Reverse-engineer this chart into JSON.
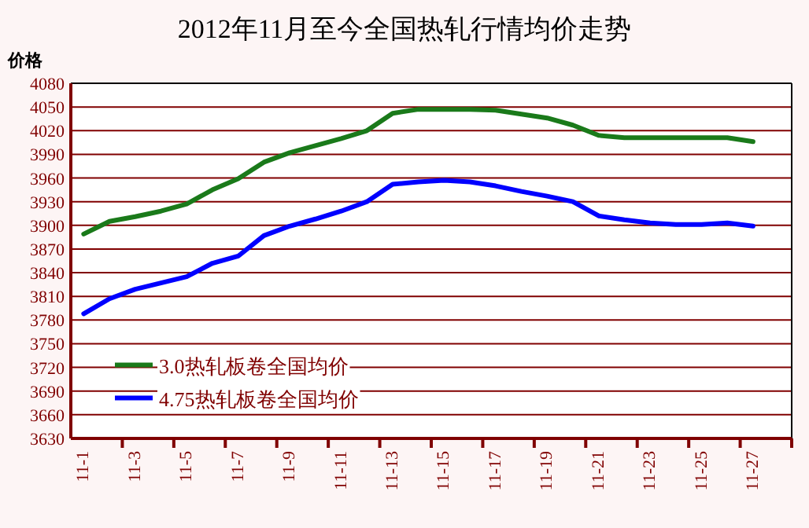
{
  "chart_data": {
    "type": "line",
    "title": "2012年11月至今全国热轧行情均价走势",
    "ylabel": "价格",
    "categories": [
      "11-1",
      null,
      "11-3",
      null,
      "11-5",
      null,
      "11-7",
      null,
      "11-9",
      null,
      "11-11",
      null,
      "11-13",
      null,
      "11-15",
      null,
      "11-17",
      null,
      "11-19",
      null,
      "11-21",
      null,
      "11-23",
      null,
      "11-25",
      null,
      "11-27",
      null
    ],
    "series": [
      {
        "name": "3.0热轧板卷全国均价",
        "color": "#1a7a1a",
        "values": [
          3889,
          3905,
          3911,
          3918,
          3927,
          3945,
          3959,
          3980,
          3992,
          4001,
          4010,
          4020,
          4042,
          4047,
          4047,
          4047,
          4046,
          4041,
          4036,
          4027,
          4014,
          4011,
          4011,
          4011,
          4011,
          4011,
          4006,
          null
        ]
      },
      {
        "name": "4.75热轧板卷全国均价",
        "color": "#0000ff",
        "values": [
          3788,
          3807,
          3819,
          3827,
          3835,
          3852,
          3861,
          3887,
          3899,
          3908,
          3918,
          3930,
          3952,
          3955,
          3957,
          3955,
          3950,
          3943,
          3937,
          3930,
          3912,
          3907,
          3903,
          3901,
          3901,
          3903,
          3899,
          null
        ]
      }
    ],
    "ylim": [
      3630,
      4080
    ],
    "yticks": [
      3630,
      3660,
      3690,
      3720,
      3750,
      3780,
      3810,
      3840,
      3870,
      3900,
      3930,
      3960,
      3990,
      4020,
      4050,
      4080
    ],
    "grid": "y",
    "legend": "bottom left",
    "marker": "none",
    "line_style": "solid"
  }
}
